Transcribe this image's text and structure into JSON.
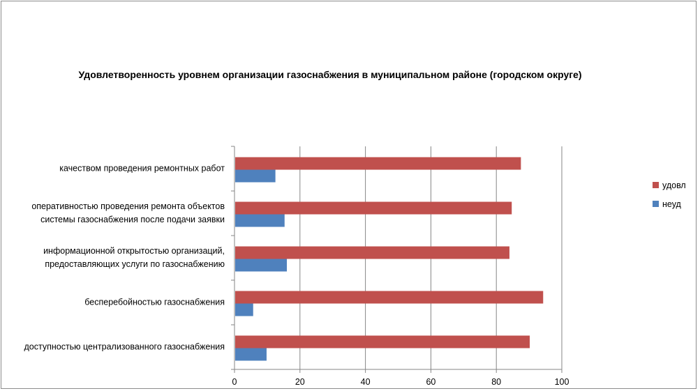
{
  "chart_data": {
    "type": "bar",
    "orientation": "horizontal",
    "title": "Удовлетворенность уровнем организации газоснабжения в муниципальном районе (городском округе)",
    "categories": [
      [
        "качеством проведения  ремонтных работ"
      ],
      [
        "оперативностью проведения ремонта объектов",
        "системы газоснабжения после подачи заявки"
      ],
      [
        "информационной открытостью организаций,",
        "предоставляющих услуги по газоснабжению"
      ],
      [
        "бесперебойностью  газоснабжения"
      ],
      [
        "доступностью централизованного газоснабжения"
      ]
    ],
    "series": [
      {
        "name": "удовл",
        "color": "#c0504d",
        "values": [
          87.5,
          84.7,
          84,
          94.3,
          90.2
        ]
      },
      {
        "name": "неуд",
        "color": "#4f81bd",
        "values": [
          12.5,
          15.3,
          16,
          5.7,
          9.8
        ]
      }
    ],
    "xlim": [
      0,
      100
    ],
    "ticks": [
      0,
      20,
      40,
      60,
      80,
      100
    ],
    "grid": true,
    "legend_position": "right",
    "xlabel": "",
    "ylabel": ""
  }
}
